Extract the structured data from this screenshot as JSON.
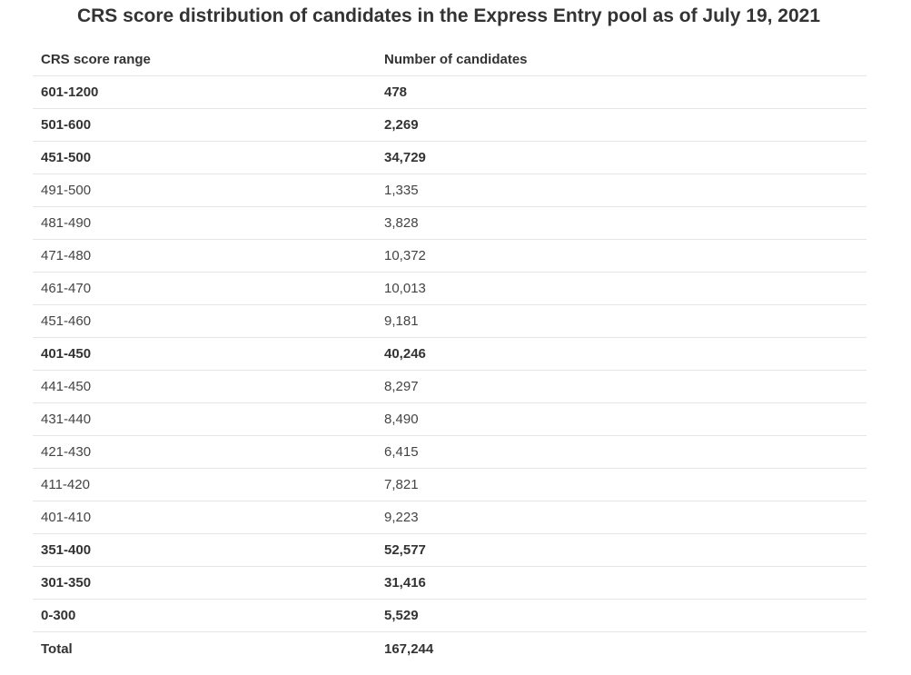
{
  "title": "CRS score distribution of candidates in the Express Entry pool as of July 19, 2021",
  "table": {
    "headers": [
      "CRS score range",
      "Number of candidates"
    ],
    "rows": [
      {
        "range": "601-1200",
        "count": "478",
        "emphasis": "bold"
      },
      {
        "range": "501-600",
        "count": "2,269",
        "emphasis": "bold"
      },
      {
        "range": "451-500",
        "count": "34,729",
        "emphasis": "bold"
      },
      {
        "range": "491-500",
        "count": "1,335",
        "emphasis": "normal"
      },
      {
        "range": "481-490",
        "count": "3,828",
        "emphasis": "normal"
      },
      {
        "range": "471-480",
        "count": "10,372",
        "emphasis": "normal"
      },
      {
        "range": "461-470",
        "count": "10,013",
        "emphasis": "normal"
      },
      {
        "range": "451-460",
        "count": "9,181",
        "emphasis": "normal"
      },
      {
        "range": "401-450",
        "count": "40,246",
        "emphasis": "bold"
      },
      {
        "range": "441-450",
        "count": "8,297",
        "emphasis": "normal"
      },
      {
        "range": "431-440",
        "count": "8,490",
        "emphasis": "normal"
      },
      {
        "range": "421-430",
        "count": "6,415",
        "emphasis": "normal"
      },
      {
        "range": "411-420",
        "count": "7,821",
        "emphasis": "normal"
      },
      {
        "range": "401-410",
        "count": "9,223",
        "emphasis": "normal"
      },
      {
        "range": "351-400",
        "count": "52,577",
        "emphasis": "bold"
      },
      {
        "range": "301-350",
        "count": "31,416",
        "emphasis": "bold"
      },
      {
        "range": "0-300",
        "count": "5,529",
        "emphasis": "bold"
      },
      {
        "range": "Total",
        "count": "167,244",
        "emphasis": "bold"
      }
    ]
  }
}
